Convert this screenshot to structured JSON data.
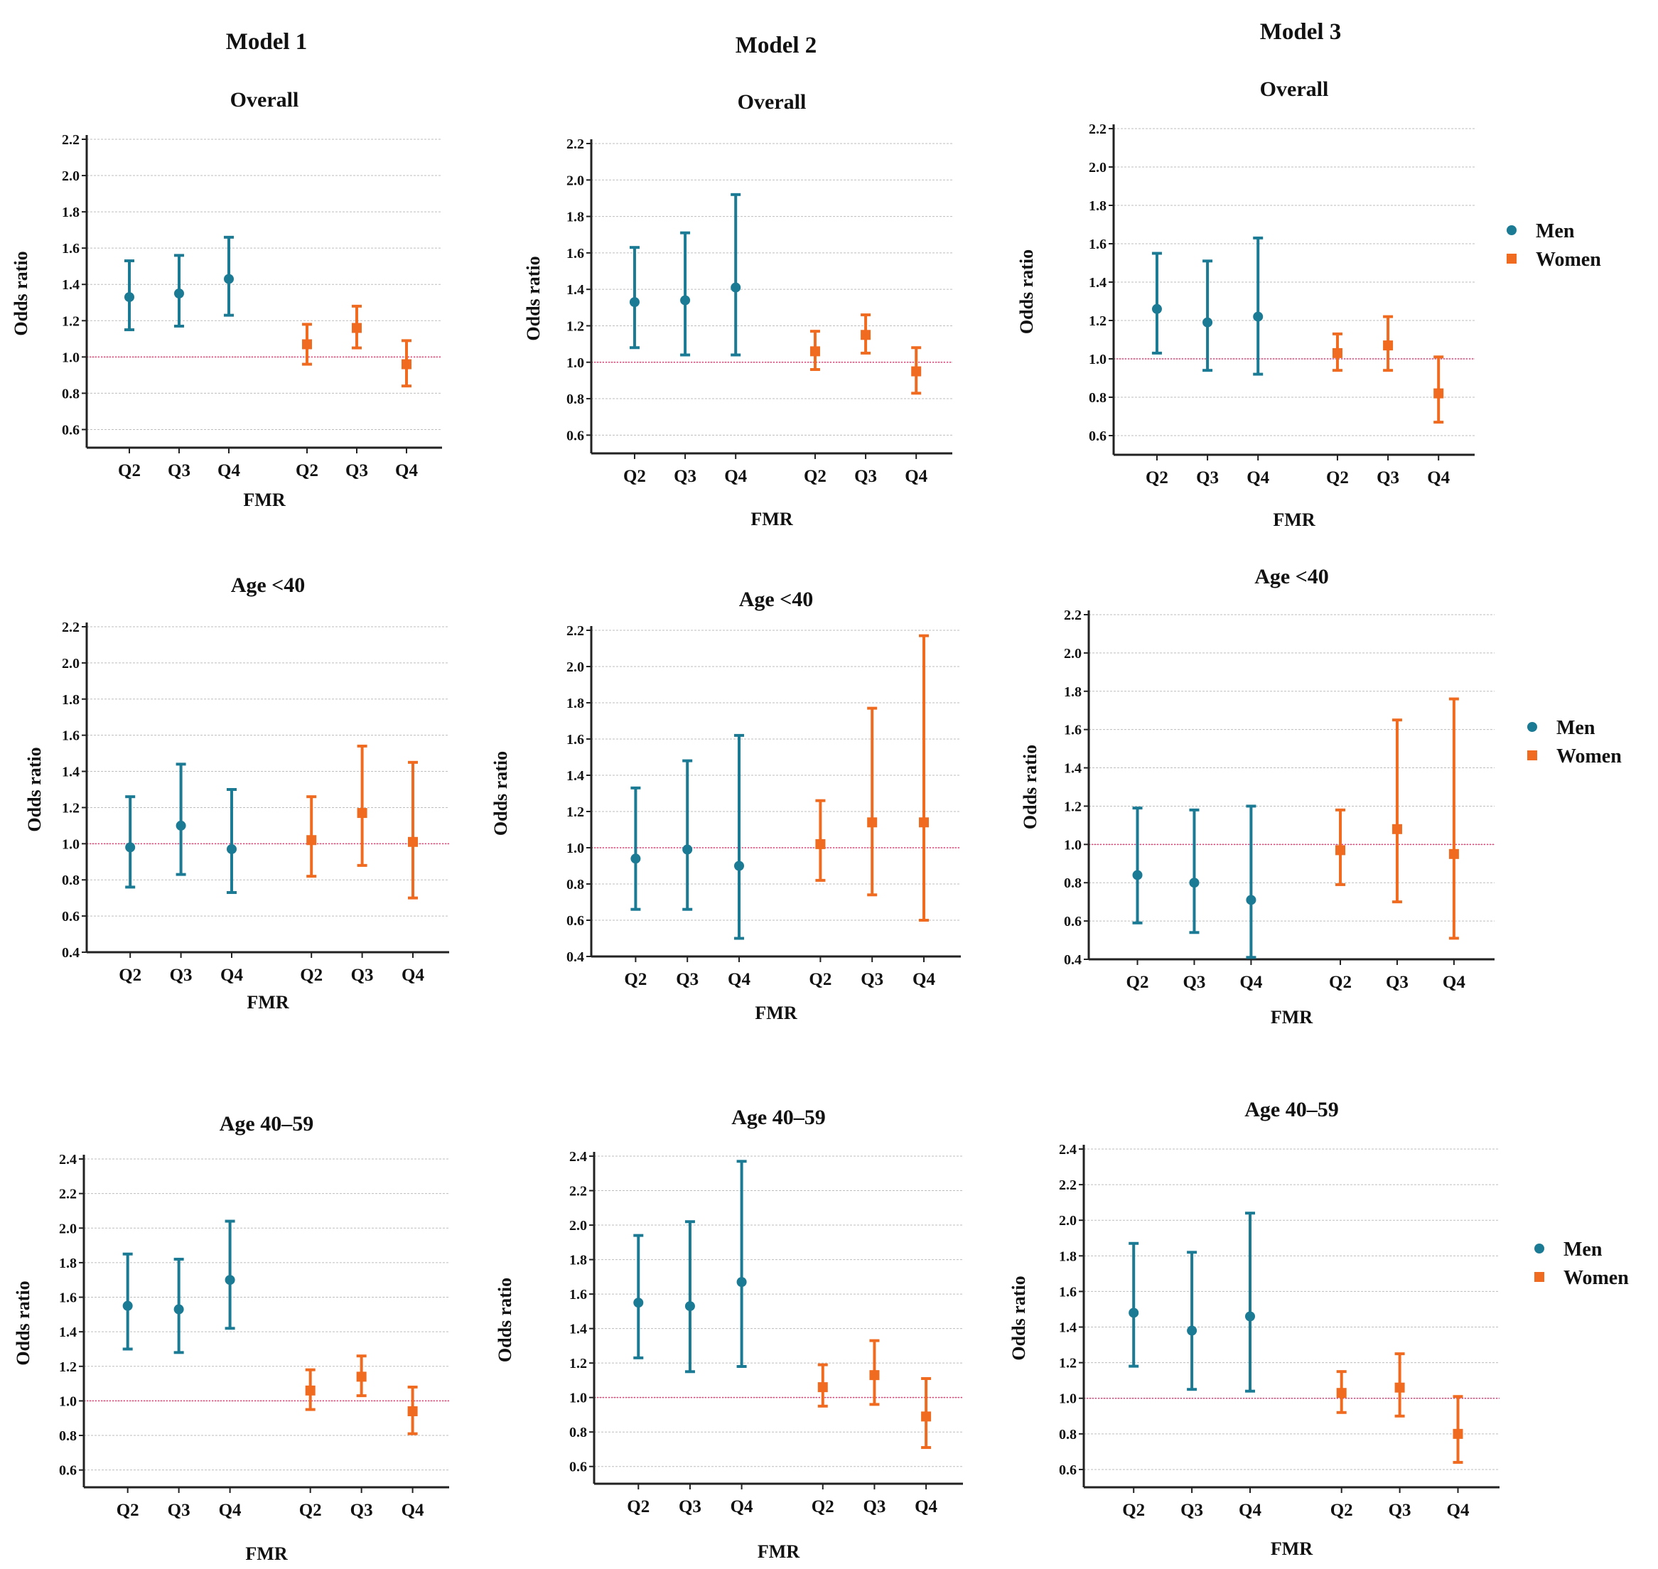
{
  "figure": {
    "column_titles": [
      "Model 1",
      "Model 2",
      "Model 3"
    ],
    "legend": [
      {
        "name": "Men",
        "marker": "circle",
        "color": "#1b7a94"
      },
      {
        "name": "Women",
        "marker": "square",
        "color": "#f06b1f"
      }
    ],
    "reference_line_color": "#e0407a",
    "grid_color": "#bdbdbd"
  },
  "chart_data": [
    {
      "type": "scatter",
      "title": "Overall",
      "xlabel": "FMR",
      "ylabel": "Odds ratio",
      "ylim": [
        0.5,
        2.2
      ],
      "yticks": [
        0.6,
        0.8,
        1.0,
        1.2,
        1.4,
        1.6,
        1.8,
        2.0,
        2.2
      ],
      "reference_line": 1.0,
      "categories": [
        "Q2",
        "Q3",
        "Q4",
        "Q2",
        "Q3",
        "Q4"
      ],
      "series": [
        {
          "name": "Men",
          "values": [
            1.33,
            1.35,
            1.43
          ],
          "lower": [
            1.15,
            1.17,
            1.23
          ],
          "upper": [
            1.53,
            1.56,
            1.66
          ]
        },
        {
          "name": "Women",
          "values": [
            1.07,
            1.16,
            0.96
          ],
          "lower": [
            0.96,
            1.05,
            0.84
          ],
          "upper": [
            1.18,
            1.28,
            1.09
          ]
        }
      ]
    },
    {
      "type": "scatter",
      "title": "Overall",
      "xlabel": "FMR",
      "ylabel": "Odds ratio",
      "ylim": [
        0.5,
        2.2
      ],
      "yticks": [
        0.6,
        0.8,
        1.0,
        1.2,
        1.4,
        1.6,
        1.8,
        2.0,
        2.2
      ],
      "reference_line": 1.0,
      "categories": [
        "Q2",
        "Q3",
        "Q4",
        "Q2",
        "Q3",
        "Q4"
      ],
      "series": [
        {
          "name": "Men",
          "values": [
            1.33,
            1.34,
            1.41
          ],
          "lower": [
            1.08,
            1.04,
            1.04
          ],
          "upper": [
            1.63,
            1.71,
            1.92
          ]
        },
        {
          "name": "Women",
          "values": [
            1.06,
            1.15,
            0.95
          ],
          "lower": [
            0.96,
            1.05,
            0.83
          ],
          "upper": [
            1.17,
            1.26,
            1.08
          ]
        }
      ]
    },
    {
      "type": "scatter",
      "title": "Overall",
      "xlabel": "FMR",
      "ylabel": "Odds ratio",
      "ylim": [
        0.5,
        2.2
      ],
      "yticks": [
        0.6,
        0.8,
        1.0,
        1.2,
        1.4,
        1.6,
        1.8,
        2.0,
        2.2
      ],
      "reference_line": 1.0,
      "categories": [
        "Q2",
        "Q3",
        "Q4",
        "Q2",
        "Q3",
        "Q4"
      ],
      "series": [
        {
          "name": "Men",
          "values": [
            1.26,
            1.19,
            1.22
          ],
          "lower": [
            1.03,
            0.94,
            0.92
          ],
          "upper": [
            1.55,
            1.51,
            1.63
          ]
        },
        {
          "name": "Women",
          "values": [
            1.03,
            1.07,
            0.82
          ],
          "lower": [
            0.94,
            0.94,
            0.67
          ],
          "upper": [
            1.13,
            1.22,
            1.01
          ]
        }
      ]
    },
    {
      "type": "scatter",
      "title": "Age <40",
      "xlabel": "FMR",
      "ylabel": "Odds ratio",
      "ylim": [
        0.4,
        2.2
      ],
      "yticks": [
        0.4,
        0.6,
        0.8,
        1.0,
        1.2,
        1.4,
        1.6,
        1.8,
        2.0,
        2.2
      ],
      "reference_line": 1.0,
      "categories": [
        "Q2",
        "Q3",
        "Q4",
        "Q2",
        "Q3",
        "Q4"
      ],
      "series": [
        {
          "name": "Men",
          "values": [
            0.98,
            1.1,
            0.97
          ],
          "lower": [
            0.76,
            0.83,
            0.73
          ],
          "upper": [
            1.26,
            1.44,
            1.3
          ]
        },
        {
          "name": "Women",
          "values": [
            1.02,
            1.17,
            1.01
          ],
          "lower": [
            0.82,
            0.88,
            0.7
          ],
          "upper": [
            1.26,
            1.54,
            1.45
          ]
        }
      ]
    },
    {
      "type": "scatter",
      "title": "Age <40",
      "xlabel": "FMR",
      "ylabel": "Odds ratio",
      "ylim": [
        0.4,
        2.2
      ],
      "yticks": [
        0.4,
        0.6,
        0.8,
        1.0,
        1.2,
        1.4,
        1.6,
        1.8,
        2.0,
        2.2
      ],
      "reference_line": 1.0,
      "categories": [
        "Q2",
        "Q3",
        "Q4",
        "Q2",
        "Q3",
        "Q4"
      ],
      "series": [
        {
          "name": "Men",
          "values": [
            0.94,
            0.99,
            0.9
          ],
          "lower": [
            0.66,
            0.66,
            0.5
          ],
          "upper": [
            1.33,
            1.48,
            1.62
          ]
        },
        {
          "name": "Women",
          "values": [
            1.02,
            1.14,
            1.14
          ],
          "lower": [
            0.82,
            0.74,
            0.6
          ],
          "upper": [
            1.26,
            1.77,
            2.17
          ]
        }
      ]
    },
    {
      "type": "scatter",
      "title": "Age <40",
      "xlabel": "FMR",
      "ylabel": "Odds ratio",
      "ylim": [
        0.4,
        2.2
      ],
      "yticks": [
        0.4,
        0.6,
        0.8,
        1.0,
        1.2,
        1.4,
        1.6,
        1.8,
        2.0,
        2.2
      ],
      "reference_line": 1.0,
      "categories": [
        "Q2",
        "Q3",
        "Q4",
        "Q2",
        "Q3",
        "Q4"
      ],
      "series": [
        {
          "name": "Men",
          "values": [
            0.84,
            0.8,
            0.71
          ],
          "lower": [
            0.59,
            0.54,
            0.41
          ],
          "upper": [
            1.19,
            1.18,
            1.2
          ]
        },
        {
          "name": "Women",
          "values": [
            0.97,
            1.08,
            0.95
          ],
          "lower": [
            0.79,
            0.7,
            0.51
          ],
          "upper": [
            1.18,
            1.65,
            1.76
          ]
        }
      ]
    },
    {
      "type": "scatter",
      "title": "Age 40–59",
      "xlabel": "FMR",
      "ylabel": "Odds ratio",
      "ylim": [
        0.5,
        2.4
      ],
      "yticks": [
        0.6,
        0.8,
        1.0,
        1.2,
        1.4,
        1.6,
        1.8,
        2.0,
        2.2,
        2.4
      ],
      "reference_line": 1.0,
      "categories": [
        "Q2",
        "Q3",
        "Q4",
        "Q2",
        "Q3",
        "Q4"
      ],
      "series": [
        {
          "name": "Men",
          "values": [
            1.55,
            1.53,
            1.7
          ],
          "lower": [
            1.3,
            1.28,
            1.42
          ],
          "upper": [
            1.85,
            1.82,
            2.04
          ]
        },
        {
          "name": "Women",
          "values": [
            1.06,
            1.14,
            0.94
          ],
          "lower": [
            0.95,
            1.03,
            0.81
          ],
          "upper": [
            1.18,
            1.26,
            1.08
          ]
        }
      ]
    },
    {
      "type": "scatter",
      "title": "Age 40–59",
      "xlabel": "FMR",
      "ylabel": "Odds ratio",
      "ylim": [
        0.5,
        2.4
      ],
      "yticks": [
        0.6,
        0.8,
        1.0,
        1.2,
        1.4,
        1.6,
        1.8,
        2.0,
        2.2,
        2.4
      ],
      "reference_line": 1.0,
      "categories": [
        "Q2",
        "Q3",
        "Q4",
        "Q2",
        "Q3",
        "Q4"
      ],
      "series": [
        {
          "name": "Men",
          "values": [
            1.55,
            1.53,
            1.67
          ],
          "lower": [
            1.23,
            1.15,
            1.18
          ],
          "upper": [
            1.94,
            2.02,
            2.37
          ]
        },
        {
          "name": "Women",
          "values": [
            1.06,
            1.13,
            0.89
          ],
          "lower": [
            0.95,
            0.96,
            0.71
          ],
          "upper": [
            1.19,
            1.33,
            1.11
          ]
        }
      ]
    },
    {
      "type": "scatter",
      "title": "Age 40–59",
      "xlabel": "FMR",
      "ylabel": "Odds ratio",
      "ylim": [
        0.5,
        2.4
      ],
      "yticks": [
        0.6,
        0.8,
        1.0,
        1.2,
        1.4,
        1.6,
        1.8,
        2.0,
        2.2,
        2.4
      ],
      "reference_line": 1.0,
      "categories": [
        "Q2",
        "Q3",
        "Q4",
        "Q2",
        "Q3",
        "Q4"
      ],
      "series": [
        {
          "name": "Men",
          "values": [
            1.48,
            1.38,
            1.46
          ],
          "lower": [
            1.18,
            1.05,
            1.04
          ],
          "upper": [
            1.87,
            1.82,
            2.04
          ]
        },
        {
          "name": "Women",
          "values": [
            1.03,
            1.06,
            0.8
          ],
          "lower": [
            0.92,
            0.9,
            0.64
          ],
          "upper": [
            1.15,
            1.25,
            1.01
          ]
        }
      ]
    }
  ]
}
